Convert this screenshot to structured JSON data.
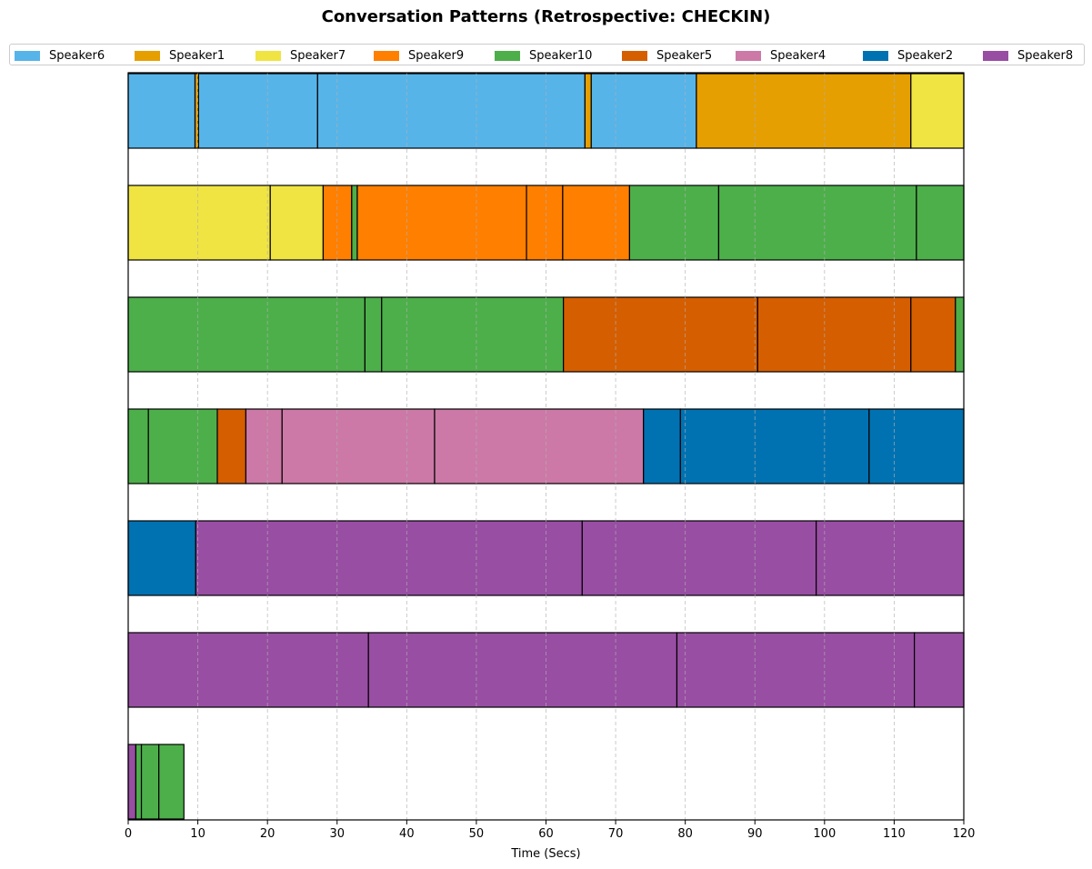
{
  "chart_data": {
    "type": "bar",
    "title": "Conversation Patterns (Retrospective: CHECKIN)",
    "xlabel": "Time (Secs)",
    "ylabel": "",
    "xlim": [
      0,
      120
    ],
    "xticks": [
      "0",
      "10",
      "20",
      "30",
      "40",
      "50",
      "60",
      "70",
      "80",
      "90",
      "100",
      "110",
      "120"
    ],
    "grid": "vertical dashed",
    "legend_position": "top",
    "legend": [
      {
        "name": "Speaker6",
        "color": "#56B4E9"
      },
      {
        "name": "Speaker1",
        "color": "#E69F00"
      },
      {
        "name": "Speaker7",
        "color": "#F0E442"
      },
      {
        "name": "Speaker9",
        "color": "#FF7F00"
      },
      {
        "name": "Speaker10",
        "color": "#4DAF4A"
      },
      {
        "name": "Speaker5",
        "color": "#D55E00"
      },
      {
        "name": "Speaker4",
        "color": "#CC79A7"
      },
      {
        "name": "Speaker2",
        "color": "#0072B2"
      },
      {
        "name": "Speaker8",
        "color": "#984EA3"
      }
    ],
    "rows": [
      [
        {
          "speaker": "Speaker6",
          "start": 0,
          "end": 9.6
        },
        {
          "speaker": "Speaker1",
          "start": 9.6,
          "end": 10.1
        },
        {
          "speaker": "Speaker6",
          "start": 10.1,
          "end": 27.2
        },
        {
          "speaker": "Speaker6",
          "start": 27.2,
          "end": 65.6
        },
        {
          "speaker": "Speaker1",
          "start": 65.6,
          "end": 66.5
        },
        {
          "speaker": "Speaker6",
          "start": 66.5,
          "end": 81.6
        },
        {
          "speaker": "Speaker1",
          "start": 81.6,
          "end": 112.4
        },
        {
          "speaker": "Speaker7",
          "start": 112.4,
          "end": 120
        }
      ],
      [
        {
          "speaker": "Speaker7",
          "start": 0,
          "end": 20.4
        },
        {
          "speaker": "Speaker7",
          "start": 20.4,
          "end": 28.0
        },
        {
          "speaker": "Speaker9",
          "start": 28.0,
          "end": 32.1
        },
        {
          "speaker": "Speaker10",
          "start": 32.1,
          "end": 32.9
        },
        {
          "speaker": "Speaker9",
          "start": 32.9,
          "end": 57.2
        },
        {
          "speaker": "Speaker9",
          "start": 57.2,
          "end": 62.4
        },
        {
          "speaker": "Speaker9",
          "start": 62.4,
          "end": 72.0
        },
        {
          "speaker": "Speaker10",
          "start": 72.0,
          "end": 84.8
        },
        {
          "speaker": "Speaker10",
          "start": 84.8,
          "end": 113.2
        },
        {
          "speaker": "Speaker10",
          "start": 113.2,
          "end": 120
        }
      ],
      [
        {
          "speaker": "Speaker10",
          "start": 0,
          "end": 34.0
        },
        {
          "speaker": "Speaker10",
          "start": 34.0,
          "end": 36.4
        },
        {
          "speaker": "Speaker10",
          "start": 36.4,
          "end": 62.5
        },
        {
          "speaker": "Speaker5",
          "start": 62.5,
          "end": 90.4
        },
        {
          "speaker": "Speaker5",
          "start": 90.4,
          "end": 112.4
        },
        {
          "speaker": "Speaker5",
          "start": 112.4,
          "end": 118.8
        },
        {
          "speaker": "Speaker10",
          "start": 118.8,
          "end": 120
        }
      ],
      [
        {
          "speaker": "Speaker10",
          "start": 0,
          "end": 2.9
        },
        {
          "speaker": "Speaker10",
          "start": 2.9,
          "end": 12.8
        },
        {
          "speaker": "Speaker5",
          "start": 12.8,
          "end": 16.9
        },
        {
          "speaker": "Speaker4",
          "start": 16.9,
          "end": 22.1
        },
        {
          "speaker": "Speaker4",
          "start": 22.1,
          "end": 44.0
        },
        {
          "speaker": "Speaker4",
          "start": 44.0,
          "end": 74.0
        },
        {
          "speaker": "Speaker2",
          "start": 74.0,
          "end": 79.3
        },
        {
          "speaker": "Speaker2",
          "start": 79.3,
          "end": 106.4
        },
        {
          "speaker": "Speaker2",
          "start": 106.4,
          "end": 120
        }
      ],
      [
        {
          "speaker": "Speaker2",
          "start": 0,
          "end": 9.7
        },
        {
          "speaker": "Speaker8",
          "start": 9.7,
          "end": 65.2
        },
        {
          "speaker": "Speaker8",
          "start": 65.2,
          "end": 98.8
        },
        {
          "speaker": "Speaker8",
          "start": 98.8,
          "end": 120
        }
      ],
      [
        {
          "speaker": "Speaker8",
          "start": 0,
          "end": 34.5
        },
        {
          "speaker": "Speaker8",
          "start": 34.5,
          "end": 78.8
        },
        {
          "speaker": "Speaker8",
          "start": 78.8,
          "end": 112.9
        },
        {
          "speaker": "Speaker8",
          "start": 112.9,
          "end": 120
        }
      ],
      [
        {
          "speaker": "Speaker8",
          "start": 0,
          "end": 1.1
        },
        {
          "speaker": "Speaker10",
          "start": 1.1,
          "end": 1.9
        },
        {
          "speaker": "Speaker10",
          "start": 1.9,
          "end": 4.4
        },
        {
          "speaker": "Speaker10",
          "start": 4.4,
          "end": 8.0
        }
      ]
    ]
  }
}
